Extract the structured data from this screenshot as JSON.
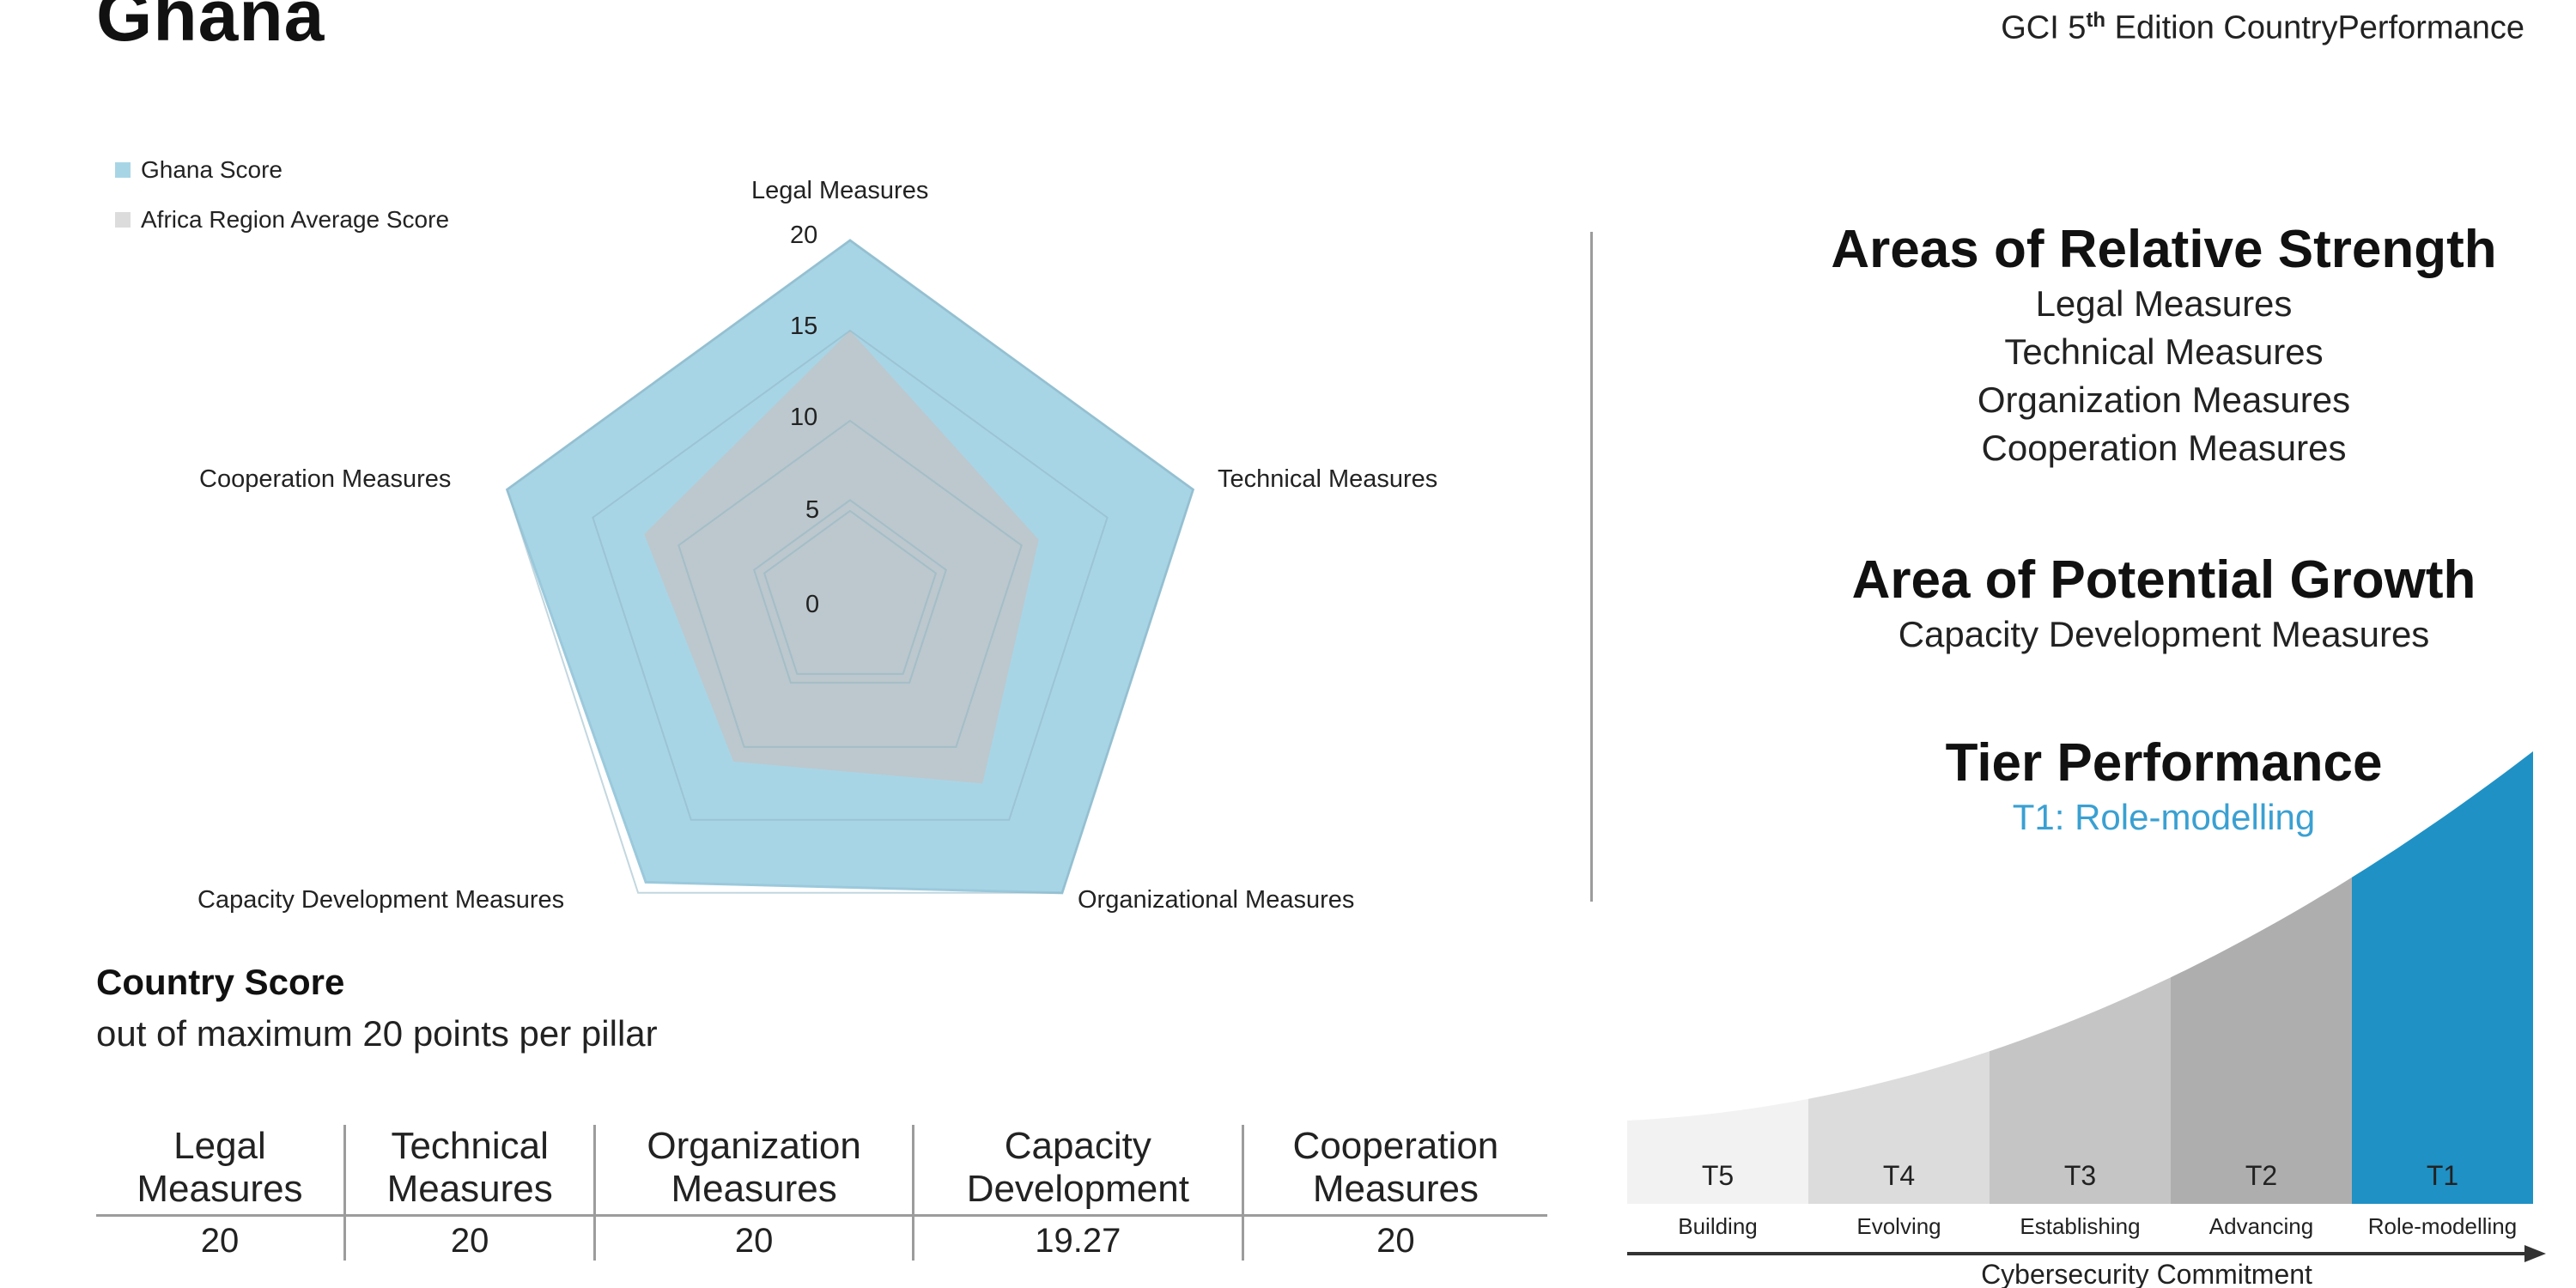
{
  "header": {
    "country": "Ghana",
    "edition_prefix": "GCI 5",
    "edition_sup": "th",
    "edition_suffix": " Edition CountryPerformance"
  },
  "chart_data": [
    {
      "type": "radar",
      "axes": [
        "Legal Measures",
        "Technical Measures",
        "Organizational Measures",
        "Capacity Development Measures",
        "Cooperation Measures"
      ],
      "rlim": [
        0,
        20
      ],
      "ticks": [
        "0",
        "5",
        "10",
        "15",
        "20"
      ],
      "tick_values": [
        0,
        5,
        10,
        15,
        20
      ],
      "series": [
        {
          "name": "Ghana Score",
          "values": [
            20,
            20,
            20,
            19.27,
            20
          ],
          "color": "#a8d5e6"
        },
        {
          "name": "Africa Region Average Score",
          "values": [
            15,
            11,
            12.5,
            11,
            12
          ],
          "color": "#c4c4c4"
        }
      ],
      "legend": "top-left",
      "grid": true
    },
    {
      "type": "bar",
      "categories": [
        "T5",
        "T4",
        "T3",
        "T2",
        "T1"
      ],
      "labels": [
        "Building",
        "Evolving",
        "Establishing",
        "Advancing",
        "Role-modelling"
      ],
      "colors": [
        "#f2f2f2",
        "#dcdcdc",
        "#c6c5c5",
        "#aeaeae",
        "#1f91c5"
      ],
      "xlabel": "Cybersecurity Commitment"
    }
  ],
  "right_panel": {
    "strength_title": "Areas of Relative Strength",
    "strengths": [
      "Legal Measures",
      "Technical Measures",
      "Organization Measures",
      "Cooperation Measures"
    ],
    "growth_title": "Area of Potential Growth",
    "growth_item": "Capacity Development Measures",
    "tier_title": "Tier Performance",
    "tier_value": "T1: Role-modelling",
    "accent": "#3aa0d2"
  },
  "score": {
    "title": "Country Score",
    "subtitle": "out of maximum 20 points per pillar",
    "columns": [
      {
        "h1": "Legal",
        "h2": "Measures",
        "value": "20"
      },
      {
        "h1": "Technical",
        "h2": "Measures",
        "value": "20"
      },
      {
        "h1": "Organization",
        "h2": "Measures",
        "value": "20"
      },
      {
        "h1": "Capacity",
        "h2": "Development",
        "value": "19.27"
      },
      {
        "h1": "Cooperation",
        "h2": "Measures",
        "value": "20"
      }
    ]
  }
}
